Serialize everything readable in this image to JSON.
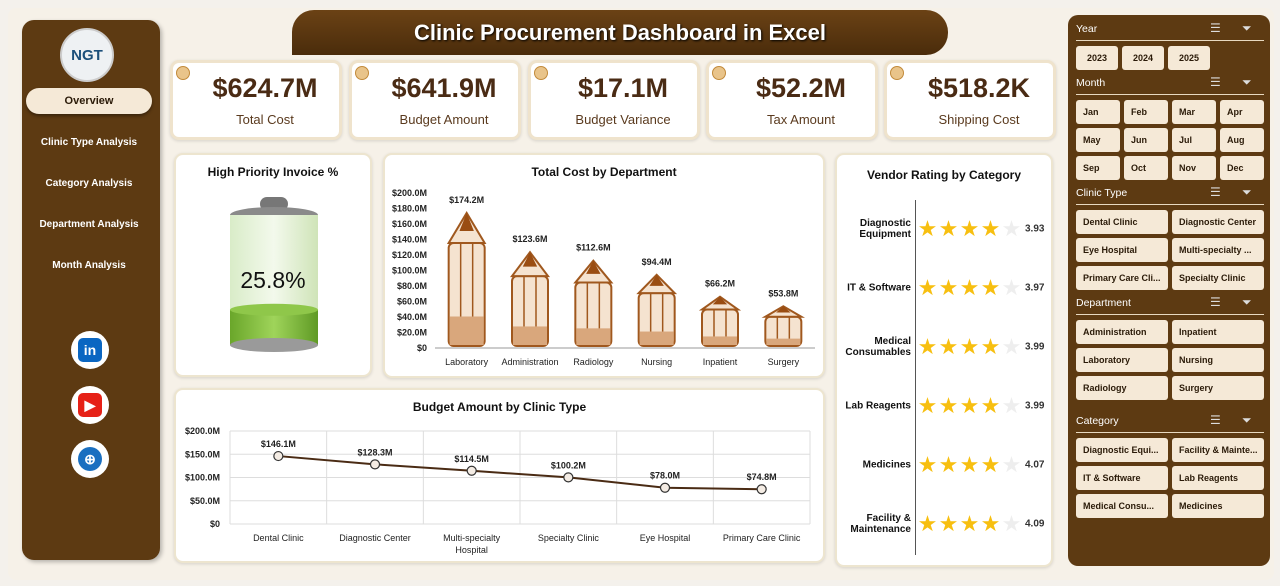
{
  "title": "Clinic Procurement Dashboard in Excel",
  "logo": "NGT",
  "nav": [
    "Overview",
    "Clinic Type Analysis",
    "Category Analysis",
    "Department Analysis",
    "Month Analysis"
  ],
  "kpis": [
    {
      "value": "$624.7M",
      "label": "Total Cost"
    },
    {
      "value": "$641.9M",
      "label": "Budget Amount"
    },
    {
      "value": "$17.1M",
      "label": "Budget Variance"
    },
    {
      "value": "$52.2M",
      "label": "Tax Amount"
    },
    {
      "value": "$518.2K",
      "label": "Shipping Cost"
    }
  ],
  "battery": {
    "title": "High Priority Invoice %",
    "value": "25.8%",
    "fraction": 0.258
  },
  "vendor": {
    "title": "Vendor Rating by Category",
    "rows": [
      {
        "label": "Diagnostic Equipment",
        "value": "3.93"
      },
      {
        "label": "IT & Software",
        "value": "3.97"
      },
      {
        "label": "Medical Consumables",
        "value": "3.99"
      },
      {
        "label": "Lab Reagents",
        "value": "3.99"
      },
      {
        "label": "Medicines",
        "value": "4.07"
      },
      {
        "label": "Facility & Maintenance",
        "value": "4.09"
      }
    ]
  },
  "slicers": [
    {
      "title": "Year",
      "items": [
        "2023",
        "2024",
        "2025"
      ]
    },
    {
      "title": "Month",
      "items": [
        "Jan",
        "Feb",
        "Mar",
        "Apr",
        "May",
        "Jun",
        "Jul",
        "Aug",
        "Sep",
        "Oct",
        "Nov",
        "Dec"
      ]
    },
    {
      "title": "Clinic Type",
      "items": [
        "Dental Clinic",
        "Diagnostic Center",
        "Eye Hospital",
        "Multi-specialty ...",
        "Primary Care Cli...",
        "Specialty Clinic"
      ]
    },
    {
      "title": "Department",
      "items": [
        "Administration",
        "Inpatient",
        "Laboratory",
        "Nursing",
        "Radiology",
        "Surgery"
      ]
    },
    {
      "title": "Category",
      "items": [
        "Diagnostic Equi...",
        "Facility & Mainte...",
        "IT & Software",
        "Lab Reagents",
        "Medical Consu...",
        "Medicines"
      ]
    }
  ],
  "chart_data": [
    {
      "type": "bar",
      "title": "Total Cost by Department",
      "categories": [
        "Laboratory",
        "Administration",
        "Radiology",
        "Nursing",
        "Inpatient",
        "Surgery"
      ],
      "values": [
        174.2,
        123.6,
        112.6,
        94.4,
        66.2,
        53.8
      ],
      "labels": [
        "$174.2M",
        "$123.6M",
        "$112.6M",
        "$94.4M",
        "$66.2M",
        "$53.8M"
      ],
      "yticks": [
        "$0",
        "$20.0M",
        "$40.0M",
        "$60.0M",
        "$80.0M",
        "$100.0M",
        "$120.0M",
        "$140.0M",
        "$160.0M",
        "$180.0M",
        "$200.0M"
      ],
      "ylim": [
        0,
        200
      ]
    },
    {
      "type": "line",
      "title": "Budget Amount by Clinic Type",
      "categories": [
        "Dental Clinic",
        "Diagnostic Center",
        "Multi-specialty Hospital",
        "Specialty Clinic",
        "Eye Hospital",
        "Primary Care Clinic"
      ],
      "values": [
        146.1,
        128.3,
        114.5,
        100.2,
        78.0,
        74.8
      ],
      "labels": [
        "$146.1M",
        "$128.3M",
        "$114.5M",
        "$100.2M",
        "$78.0M",
        "$74.8M"
      ],
      "yticks": [
        "$0",
        "$50.0M",
        "$100.0M",
        "$150.0M",
        "$200.0M"
      ],
      "ylim": [
        0,
        200
      ]
    }
  ]
}
